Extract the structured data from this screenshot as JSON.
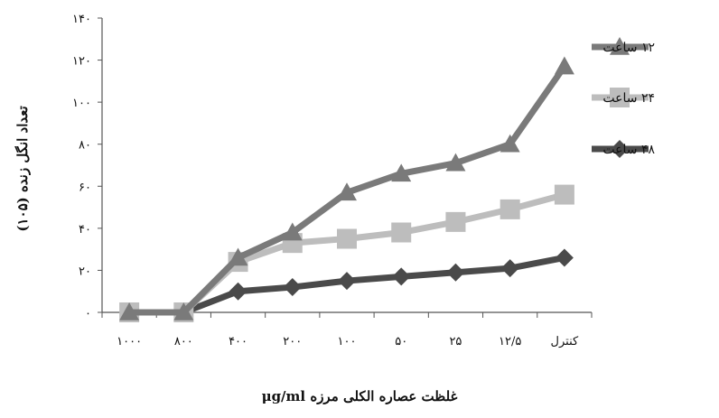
{
  "chart_data": {
    "type": "line",
    "title": "",
    "xlabel": "غلظت عصاره الکلی مرزه  μg/ml",
    "ylabel": "تعداد انگل زنده (۱۰۵)",
    "categories": [
      "۱۰۰۰",
      "۸۰۰",
      "۴۰۰",
      "۲۰۰",
      "۱۰۰",
      "۵۰",
      "۲۵",
      "۱۲/۵",
      "کنترل"
    ],
    "y_ticks": [
      "۰",
      "۲۰",
      "۴۰",
      "۶۰",
      "۸۰",
      "۱۰۰",
      "۱۲۰",
      "۱۴۰"
    ],
    "ylim": [
      0,
      140
    ],
    "grid": false,
    "legend_position": "right",
    "series": [
      {
        "name": "۱۲ ساعت",
        "marker": "triangle",
        "color": "#7a7a7a",
        "values": [
          0,
          0,
          26,
          38,
          57,
          66,
          71,
          80,
          117
        ]
      },
      {
        "name": "۲۴ ساعت",
        "marker": "square",
        "color": "#bdbdbd",
        "values": [
          0,
          0,
          24,
          33,
          35,
          38,
          43,
          49,
          56
        ]
      },
      {
        "name": "۴۸ ساعت",
        "marker": "diamond",
        "color": "#4a4a4a",
        "values": [
          0,
          0,
          10,
          12,
          15,
          17,
          19,
          21,
          26
        ]
      }
    ]
  }
}
